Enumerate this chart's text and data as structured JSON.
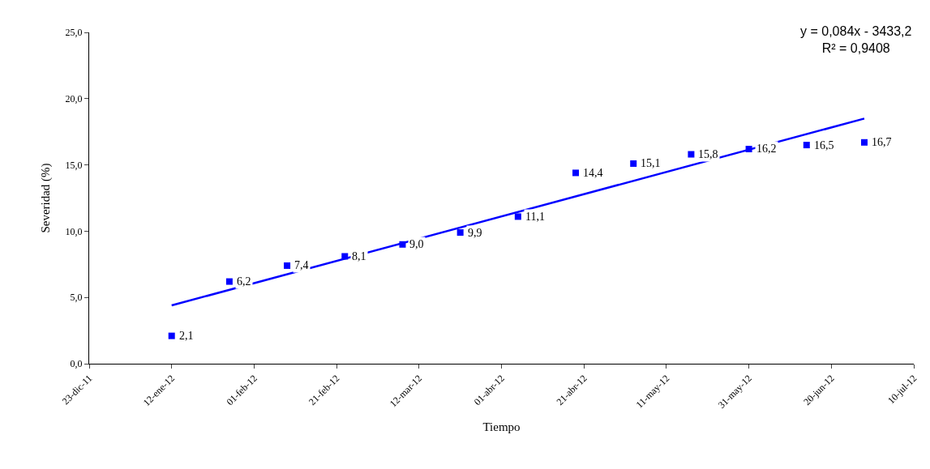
{
  "chart_data": {
    "type": "scatter",
    "xlabel": "Tiempo",
    "ylabel": "Severidad (%)",
    "x": [
      "2012-01-12",
      "2012-01-26",
      "2012-02-09",
      "2012-02-23",
      "2012-03-08",
      "2012-03-22",
      "2012-04-05",
      "2012-04-19",
      "2012-05-03",
      "2012-05-17",
      "2012-05-31",
      "2012-06-14",
      "2012-06-28"
    ],
    "series": [
      {
        "color": "#0000ff",
        "marker": "square",
        "values": [
          2.1,
          6.2,
          7.4,
          8.1,
          9.0,
          9.9,
          11.1,
          14.4,
          15.1,
          15.8,
          16.2,
          16.5,
          16.7
        ],
        "value_labels": [
          "2,1",
          "6,2",
          "7,4",
          "8,1",
          "9,0",
          "9,9",
          "11,1",
          "14,4",
          "15,1",
          "15,8",
          "16,2",
          "16,5",
          "16,7"
        ]
      },
      {
        "type": "line",
        "color": "#0000ff",
        "line_style": "solid",
        "marker": "none",
        "x": [
          "2012-01-12",
          "2012-06-28"
        ],
        "values": [
          4.4,
          18.5
        ]
      }
    ],
    "annotations": [
      "y = 0,084x - 3433,2\nR² = 0,9408"
    ],
    "xlim": [
      "2011-12-23",
      "2012-07-10"
    ],
    "xticks": [
      {
        "value": "2011-12-23",
        "label": "23-dic-11"
      },
      {
        "value": "2012-01-12",
        "label": "12-ene-12"
      },
      {
        "value": "2012-02-01",
        "label": "01-feb-12"
      },
      {
        "value": "2012-02-21",
        "label": "21-feb-12"
      },
      {
        "value": "2012-03-12",
        "label": "12-mar-12"
      },
      {
        "value": "2012-04-01",
        "label": "01-abr-12"
      },
      {
        "value": "2012-04-21",
        "label": "21-abr-12"
      },
      {
        "value": "2012-05-11",
        "label": "11-may-12"
      },
      {
        "value": "2012-05-31",
        "label": "31-may-12"
      },
      {
        "value": "2012-06-20",
        "label": "20-jun-12"
      },
      {
        "value": "2012-07-10",
        "label": "10-jul-12"
      }
    ],
    "ylim": [
      0,
      25
    ],
    "yticks": [
      {
        "value": 0,
        "label": "0,0"
      },
      {
        "value": 5,
        "label": "5,0"
      },
      {
        "value": 10,
        "label": "10,0"
      },
      {
        "value": 15,
        "label": "15,0"
      },
      {
        "value": 20,
        "label": "20,0"
      },
      {
        "value": 25,
        "label": "25,0"
      }
    ]
  }
}
